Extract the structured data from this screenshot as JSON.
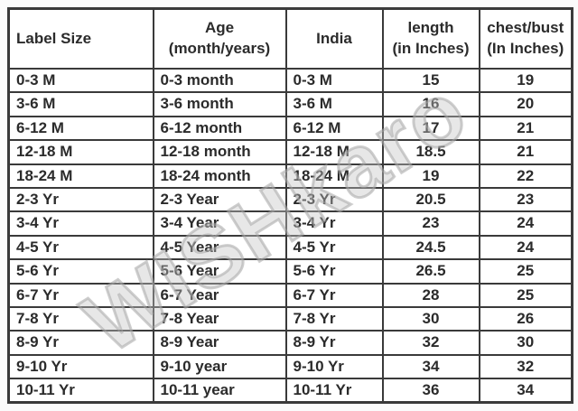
{
  "watermark": {
    "text": "WISHkaro",
    "stroke_color": "#a6a6a6"
  },
  "colors": {
    "page_background": "#fbfbfb",
    "table_background": "#ffffff",
    "border": "#3a3a3a",
    "text": "#2b2b2b"
  },
  "chart_data": {
    "type": "table",
    "columns": [
      "Label Size",
      "Age\n(month/years)",
      "India",
      "length\n(in Inches)",
      "chest/bust\n(In Inches)"
    ],
    "rows": [
      [
        "0-3 M",
        "0-3 month",
        "0-3 M",
        "15",
        "19"
      ],
      [
        "3-6 M",
        "3-6 month",
        "3-6 M",
        "16",
        "20"
      ],
      [
        "6-12 M",
        "6-12 month",
        "6-12 M",
        "17",
        "21"
      ],
      [
        "12-18 M",
        "12-18 month",
        "12-18 M",
        "18.5",
        "21"
      ],
      [
        "18-24 M",
        "18-24 month",
        "18-24 M",
        "19",
        "22"
      ],
      [
        "2-3 Yr",
        "2-3 Year",
        "2-3 Yr",
        "20.5",
        "23"
      ],
      [
        "3-4 Yr",
        "3-4 Year",
        "3-4 Yr",
        "23",
        "24"
      ],
      [
        "4-5 Yr",
        "4-5 Year",
        "4-5 Yr",
        "24.5",
        "24"
      ],
      [
        "5-6 Yr",
        "5-6 Year",
        "5-6 Yr",
        "26.5",
        "25"
      ],
      [
        "6-7 Yr",
        "6-7 Year",
        "6-7 Yr",
        "28",
        "25"
      ],
      [
        "7-8 Yr",
        "7-8 Year",
        "7-8 Yr",
        "30",
        "26"
      ],
      [
        "8-9 Yr",
        "8-9 Year",
        "8-9 Yr",
        "32",
        "30"
      ],
      [
        "9-10 Yr",
        "9-10 year",
        "9-10 Yr",
        "34",
        "32"
      ],
      [
        "10-11 Yr",
        "10-11 year",
        "10-11 Yr",
        "36",
        "34"
      ]
    ]
  }
}
